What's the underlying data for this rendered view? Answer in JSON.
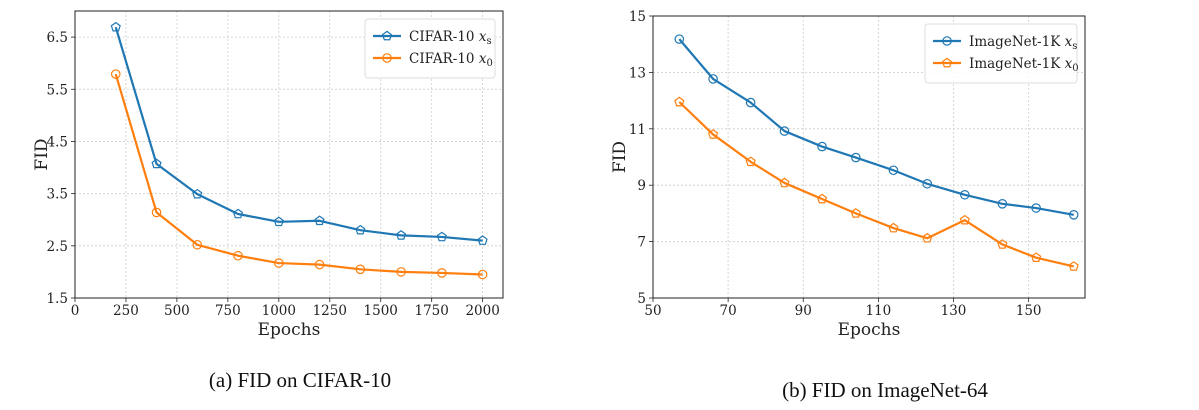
{
  "colors": {
    "blue": "#1f77b4",
    "orange": "#ff7f0e",
    "grid": "#cccccc"
  },
  "chart_data": [
    {
      "type": "line",
      "caption": "(a) FID on CIFAR-10",
      "xlabel": "Epochs",
      "ylabel": "FID",
      "xlim": [
        0,
        2100
      ],
      "ylim": [
        1.5,
        7.0
      ],
      "xticks": [
        "0",
        "250",
        "500",
        "750",
        "1000",
        "1250",
        "1500",
        "1750",
        "2000"
      ],
      "yticks": [
        "1.5",
        "2.5",
        "3.5",
        "4.5",
        "5.5",
        "6.5"
      ],
      "grid": true,
      "legend_position": "top-right",
      "x": [
        200,
        400,
        600,
        800,
        1000,
        1200,
        1400,
        1600,
        1800,
        2000
      ],
      "series": [
        {
          "name": "CIFAR-10 x_s",
          "name_base": "CIFAR-10 ",
          "name_var": "x",
          "name_sub": "s",
          "color": "#1f77b4",
          "marker": "pentagon",
          "values": [
            6.69,
            4.07,
            3.49,
            3.11,
            2.96,
            2.98,
            2.8,
            2.7,
            2.67,
            2.6
          ]
        },
        {
          "name": "CIFAR-10 x_0",
          "name_base": "CIFAR-10 ",
          "name_var": "x",
          "name_sub": "0",
          "color": "#ff7f0e",
          "marker": "circle",
          "values": [
            5.79,
            3.14,
            2.52,
            2.31,
            2.17,
            2.14,
            2.05,
            2.0,
            1.98,
            1.95
          ]
        }
      ]
    },
    {
      "type": "line",
      "caption": "(b) FID on ImageNet-64",
      "xlabel": "Epochs",
      "ylabel": "FID",
      "xlim": [
        50,
        165
      ],
      "ylim": [
        5,
        15
      ],
      "xticks": [
        "50",
        "70",
        "90",
        "110",
        "130",
        "150"
      ],
      "yticks": [
        "5",
        "7",
        "9",
        "11",
        "13",
        "15"
      ],
      "grid": true,
      "legend_position": "top-right",
      "x": [
        57,
        66,
        76,
        85,
        95,
        104,
        114,
        123,
        133,
        143,
        152,
        162
      ],
      "series": [
        {
          "name": "ImageNet-1K x_s",
          "name_base": "ImageNet-1K ",
          "name_var": "x",
          "name_sub": "s",
          "color": "#1f77b4",
          "marker": "circle",
          "values": [
            14.18,
            12.77,
            11.93,
            10.92,
            10.37,
            9.98,
            9.53,
            9.05,
            8.66,
            8.34,
            8.19,
            7.95
          ]
        },
        {
          "name": "ImageNet-1K x_0",
          "name_base": "ImageNet-1K ",
          "name_var": "x",
          "name_sub": "0",
          "color": "#ff7f0e",
          "marker": "pentagon",
          "values": [
            11.95,
            10.8,
            9.83,
            9.08,
            8.51,
            8.0,
            7.48,
            7.12,
            7.76,
            6.9,
            6.43,
            6.12
          ]
        }
      ]
    }
  ]
}
